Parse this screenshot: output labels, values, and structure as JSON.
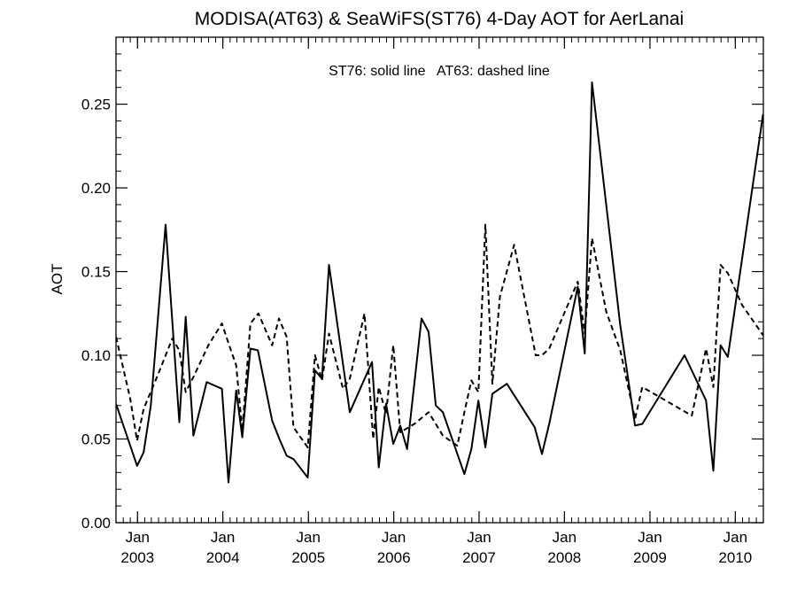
{
  "chart_data": {
    "type": "line",
    "title": "MODISA(AT63) & SeaWiFS(ST76) 4-Day AOT for AerLanai",
    "annotation": "ST76: solid line   AT63: dashed line",
    "ylabel": "AOT",
    "xlabel": "",
    "ylim": [
      0,
      0.29
    ],
    "yticks": [
      0.0,
      0.05,
      0.1,
      0.15,
      0.2,
      0.25
    ],
    "ytick_labels": [
      "0.00",
      "0.05",
      "0.10",
      "0.15",
      "0.20",
      "0.25"
    ],
    "xlim": [
      "2002-10-01",
      "2010-05-01"
    ],
    "xticks": [
      {
        "date": "2003-01-01",
        "month": "Jan",
        "year": "2003"
      },
      {
        "date": "2004-01-01",
        "month": "Jan",
        "year": "2004"
      },
      {
        "date": "2005-01-01",
        "month": "Jan",
        "year": "2005"
      },
      {
        "date": "2006-01-01",
        "month": "Jan",
        "year": "2006"
      },
      {
        "date": "2007-01-01",
        "month": "Jan",
        "year": "2007"
      },
      {
        "date": "2008-01-01",
        "month": "Jan",
        "year": "2008"
      },
      {
        "date": "2009-01-01",
        "month": "Jan",
        "year": "2009"
      },
      {
        "date": "2010-01-01",
        "month": "Jan",
        "year": "2010"
      }
    ],
    "grid": false,
    "series": [
      {
        "name": "ST76",
        "style": "solid",
        "color": "#000000",
        "points": [
          [
            "2002-10-01",
            0.071
          ],
          [
            "2002-12-30",
            0.034
          ],
          [
            "2003-01-27",
            0.042
          ],
          [
            "2003-02-27",
            0.07
          ],
          [
            "2003-05-01",
            0.178
          ],
          [
            "2003-06-29",
            0.06
          ],
          [
            "2003-07-26",
            0.123
          ],
          [
            "2003-08-28",
            0.052
          ],
          [
            "2003-10-24",
            0.084
          ],
          [
            "2003-12-28",
            0.08
          ],
          [
            "2004-01-25",
            0.024
          ],
          [
            "2004-02-27",
            0.079
          ],
          [
            "2004-03-24",
            0.051
          ],
          [
            "2004-04-28",
            0.104
          ],
          [
            "2004-05-30",
            0.103
          ],
          [
            "2004-07-30",
            0.061
          ],
          [
            "2004-08-30",
            0.05
          ],
          [
            "2004-09-30",
            0.04
          ],
          [
            "2004-10-29",
            0.038
          ],
          [
            "2004-12-29",
            0.027
          ],
          [
            "2005-01-29",
            0.091
          ],
          [
            "2005-02-28",
            0.086
          ],
          [
            "2005-03-30",
            0.154
          ],
          [
            "2005-06-27",
            0.066
          ],
          [
            "2005-09-30",
            0.096
          ],
          [
            "2005-10-29",
            0.033
          ],
          [
            "2005-11-29",
            0.071
          ],
          [
            "2005-12-30",
            0.047
          ],
          [
            "2006-01-29",
            0.058
          ],
          [
            "2006-02-27",
            0.044
          ],
          [
            "2006-04-30",
            0.122
          ],
          [
            "2006-05-30",
            0.114
          ],
          [
            "2006-06-30",
            0.07
          ],
          [
            "2006-07-30",
            0.066
          ],
          [
            "2006-10-30",
            0.029
          ],
          [
            "2006-11-29",
            0.044
          ],
          [
            "2006-12-29",
            0.073
          ],
          [
            "2007-01-28",
            0.045
          ],
          [
            "2007-02-27",
            0.077
          ],
          [
            "2007-04-30",
            0.083
          ],
          [
            "2007-08-27",
            0.057
          ],
          [
            "2007-09-27",
            0.041
          ],
          [
            "2007-10-28",
            0.059
          ],
          [
            "2008-02-27",
            0.141
          ],
          [
            "2008-03-28",
            0.101
          ],
          [
            "2008-04-28",
            0.263
          ],
          [
            "2008-08-27",
            0.118
          ],
          [
            "2008-10-29",
            0.058
          ],
          [
            "2008-11-29",
            0.059
          ],
          [
            "2009-05-29",
            0.1
          ],
          [
            "2009-08-29",
            0.073
          ],
          [
            "2009-09-29",
            0.031
          ],
          [
            "2009-10-30",
            0.106
          ],
          [
            "2009-11-30",
            0.099
          ],
          [
            "2010-04-30",
            0.244
          ]
        ]
      },
      {
        "name": "AT63",
        "style": "dashed",
        "color": "#000000",
        "points": [
          [
            "2002-10-01",
            0.111
          ],
          [
            "2002-12-01",
            0.074
          ],
          [
            "2002-12-30",
            0.049
          ],
          [
            "2003-01-27",
            0.068
          ],
          [
            "2003-03-31",
            0.089
          ],
          [
            "2003-05-30",
            0.11
          ],
          [
            "2003-06-29",
            0.103
          ],
          [
            "2003-07-26",
            0.078
          ],
          [
            "2003-08-28",
            0.087
          ],
          [
            "2003-10-31",
            0.106
          ],
          [
            "2003-12-28",
            0.119
          ],
          [
            "2004-01-28",
            0.106
          ],
          [
            "2004-02-27",
            0.094
          ],
          [
            "2004-03-24",
            0.055
          ],
          [
            "2004-04-28",
            0.119
          ],
          [
            "2004-06-01",
            0.125
          ],
          [
            "2004-07-30",
            0.106
          ],
          [
            "2004-08-28",
            0.122
          ],
          [
            "2004-09-30",
            0.111
          ],
          [
            "2004-10-29",
            0.057
          ],
          [
            "2004-12-29",
            0.045
          ],
          [
            "2005-01-29",
            0.1
          ],
          [
            "2005-02-28",
            0.085
          ],
          [
            "2005-03-30",
            0.113
          ],
          [
            "2005-05-29",
            0.08
          ],
          [
            "2005-06-27",
            0.086
          ],
          [
            "2005-08-29",
            0.125
          ],
          [
            "2005-10-05",
            0.05
          ],
          [
            "2005-10-29",
            0.081
          ],
          [
            "2005-11-29",
            0.065
          ],
          [
            "2005-12-30",
            0.106
          ],
          [
            "2006-01-29",
            0.054
          ],
          [
            "2006-03-30",
            0.059
          ],
          [
            "2006-05-30",
            0.066
          ],
          [
            "2006-07-30",
            0.052
          ],
          [
            "2006-09-30",
            0.046
          ],
          [
            "2006-10-30",
            0.066
          ],
          [
            "2006-11-29",
            0.085
          ],
          [
            "2006-12-29",
            0.078
          ],
          [
            "2007-01-28",
            0.178
          ],
          [
            "2007-02-27",
            0.083
          ],
          [
            "2007-03-31",
            0.135
          ],
          [
            "2007-05-31",
            0.166
          ],
          [
            "2007-08-31",
            0.1
          ],
          [
            "2007-09-27",
            0.1
          ],
          [
            "2007-10-28",
            0.104
          ],
          [
            "2008-02-27",
            0.144
          ],
          [
            "2008-03-28",
            0.113
          ],
          [
            "2008-04-28",
            0.17
          ],
          [
            "2008-06-28",
            0.126
          ],
          [
            "2008-08-27",
            0.103
          ],
          [
            "2008-10-29",
            0.062
          ],
          [
            "2008-11-29",
            0.081
          ],
          [
            "2009-06-29",
            0.064
          ],
          [
            "2009-08-29",
            0.104
          ],
          [
            "2009-09-29",
            0.081
          ],
          [
            "2009-10-30",
            0.154
          ],
          [
            "2009-11-30",
            0.149
          ],
          [
            "2010-01-30",
            0.13
          ],
          [
            "2010-04-30",
            0.112
          ]
        ]
      }
    ]
  }
}
